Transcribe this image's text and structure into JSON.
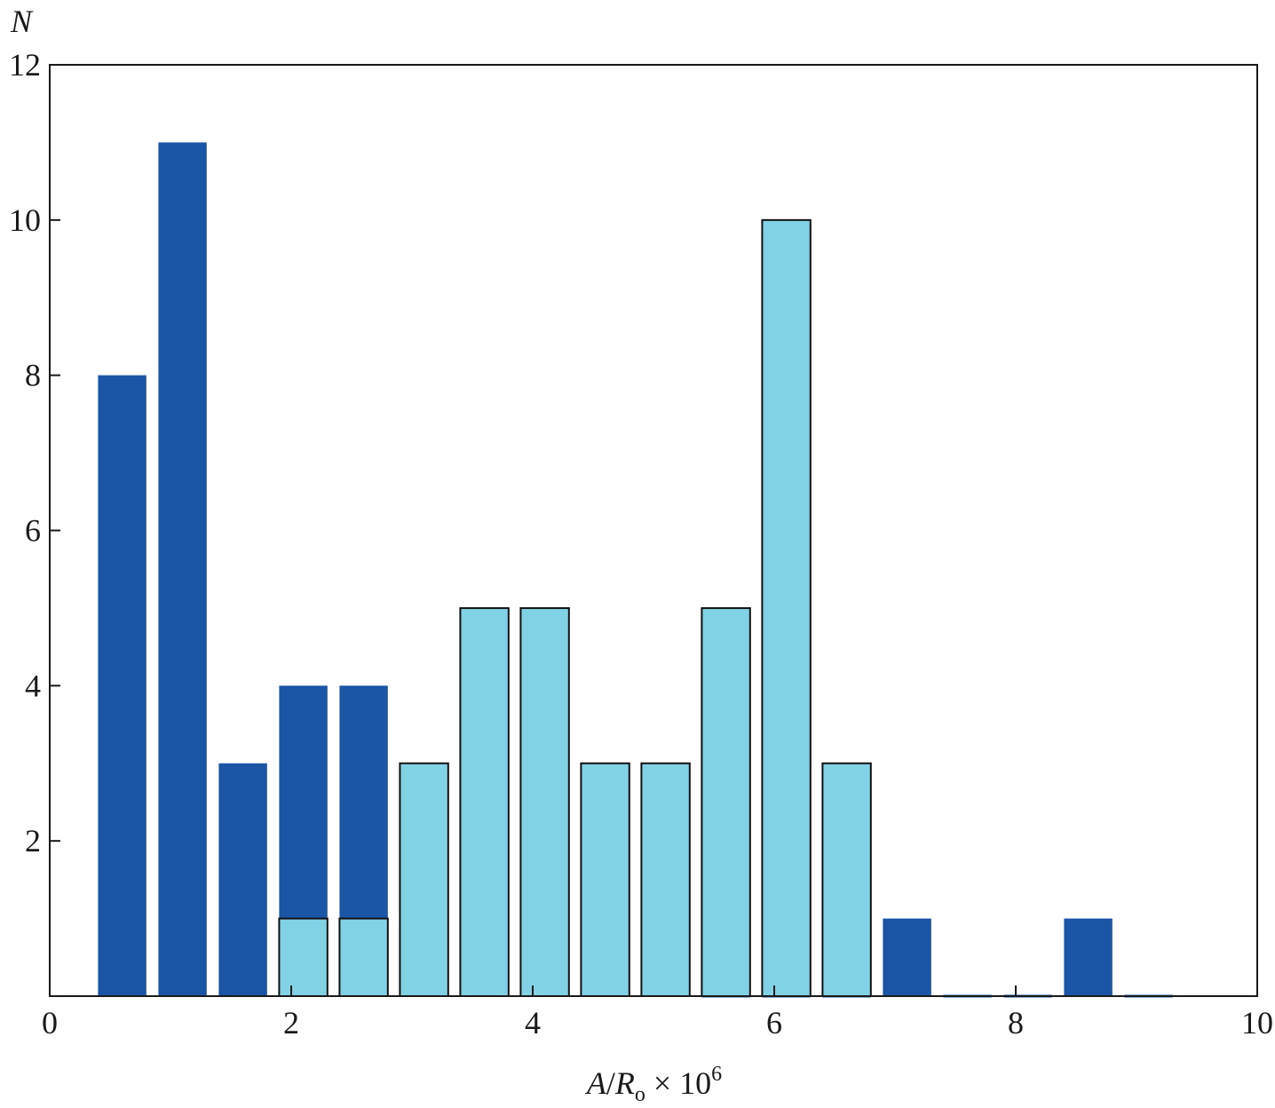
{
  "chart_data": {
    "type": "bar",
    "ylabel": "N",
    "xlabel": {
      "parts": [
        "A",
        "/",
        "R",
        "o",
        " × 10",
        "6"
      ]
    },
    "xlim": [
      0,
      10
    ],
    "ylim": [
      0,
      12
    ],
    "xticks": [
      "0",
      "2",
      "4",
      "6",
      "8",
      "10"
    ],
    "yticks": [
      "2",
      "4",
      "6",
      "8",
      "10",
      "12"
    ],
    "grid": false,
    "bar_width": 0.4,
    "series": [
      {
        "color": "#1a56a5",
        "x": [
          0.6,
          1.1,
          1.6,
          2.1,
          2.6,
          3.1,
          3.6,
          4.1,
          4.6,
          5.1,
          5.6,
          6.1,
          6.6,
          7.1,
          7.6,
          8.1,
          8.6,
          9.1
        ],
        "values": [
          8,
          11,
          3,
          4,
          4,
          3,
          2,
          1,
          1,
          1,
          0,
          0,
          0,
          1,
          0,
          0,
          1,
          0
        ]
      },
      {
        "color": "#82d2e5",
        "x": [
          2.1,
          2.6,
          3.1,
          3.6,
          4.1,
          4.6,
          5.1,
          5.6,
          6.1,
          6.6
        ],
        "values": [
          1,
          1,
          3,
          5,
          5,
          3,
          3,
          5,
          10,
          3
        ]
      }
    ]
  }
}
